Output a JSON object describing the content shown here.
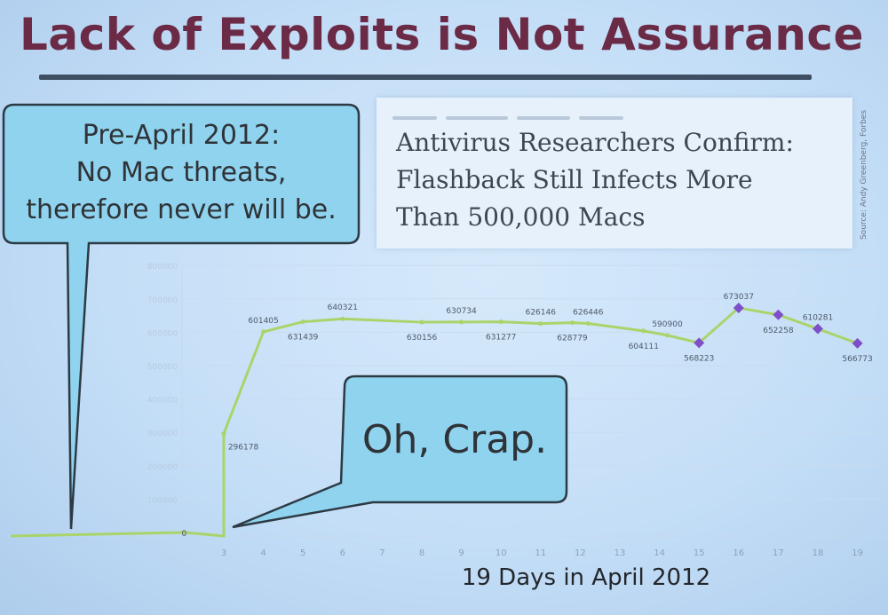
{
  "slide_title": "Lack of Exploits is Not Assurance",
  "callout_pre_april": [
    "Pre-April 2012:",
    "No Mac threats,",
    "therefore never will be."
  ],
  "callout_crap": "Oh, Crap.",
  "headline": [
    "Antivirus Researchers Confirm:",
    "Flashback Still Infects More",
    "Than 500,000 Macs"
  ],
  "source": "Source: Andy Greenberg, Forbes",
  "colors": {
    "title": "#6b2b46",
    "callout_fill": "#8fd3ee",
    "line": "#a9d46a",
    "marker": "#7e4fc8"
  },
  "chart_data": {
    "type": "line",
    "xlabel": "19 Days in April 2012",
    "x_ticks": [
      3,
      4,
      5,
      6,
      7,
      8,
      9,
      10,
      11,
      12,
      13,
      14,
      15,
      16,
      17,
      18,
      19
    ],
    "ylim": [
      0,
      800000
    ],
    "y_ticks": [
      100000,
      200000,
      300000,
      400000,
      500000,
      600000,
      700000,
      800000
    ],
    "points": [
      {
        "x": 2,
        "y": 0,
        "label": "0"
      },
      {
        "x": 3,
        "y": 296178,
        "label": "296178"
      },
      {
        "x": 4,
        "y": 601405,
        "label": "601405"
      },
      {
        "x": 5,
        "y": 631439,
        "label": "631439"
      },
      {
        "x": 6,
        "y": 640321,
        "label": "640321"
      },
      {
        "x": 8,
        "y": 630156,
        "label": "630156"
      },
      {
        "x": 9,
        "y": 630734,
        "label": "630734"
      },
      {
        "x": 10,
        "y": 631277,
        "label": "631277"
      },
      {
        "x": 11,
        "y": 626146,
        "label": "626146"
      },
      {
        "x": 11.8,
        "y": 628779,
        "label": "628779"
      },
      {
        "x": 12.2,
        "y": 626446,
        "label": "626446"
      },
      {
        "x": 13.6,
        "y": 604111,
        "label": "604111"
      },
      {
        "x": 14.2,
        "y": 590900,
        "label": "590900"
      },
      {
        "x": 15,
        "y": 568223,
        "label": "568223"
      },
      {
        "x": 16,
        "y": 673037,
        "label": "673037"
      },
      {
        "x": 17,
        "y": 652258,
        "label": "652258"
      },
      {
        "x": 18,
        "y": 610281,
        "label": "610281"
      },
      {
        "x": 19,
        "y": 566773,
        "label": "566773"
      }
    ],
    "markers_from_x": 15
  }
}
